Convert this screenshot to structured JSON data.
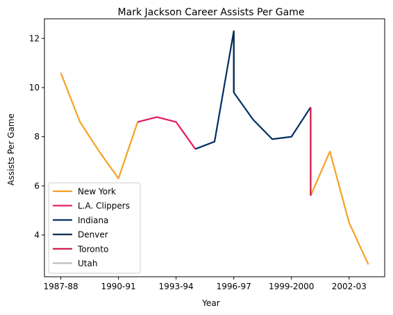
{
  "chart_data": {
    "type": "line",
    "title": "Mark Jackson  Career Assists Per Game",
    "xlabel": "Year",
    "ylabel": "Assists Per Game",
    "xticks": [
      "1987-88",
      "1990-91",
      "1993-94",
      "1996-97",
      "1999-2000",
      "2002-03"
    ],
    "yticks": [
      4,
      6,
      8,
      10,
      12
    ],
    "xlim": [
      -0.85,
      16.85
    ],
    "ylim": [
      2.3,
      12.8
    ],
    "grid": false,
    "legend_position": "lower-left",
    "series": [
      {
        "name": "New York",
        "color": "#f5a122",
        "segments": [
          {
            "x": [
              0,
              1,
              2,
              3,
              4
            ],
            "y": [
              10.6,
              8.6,
              7.4,
              6.3,
              8.6
            ]
          },
          {
            "x": [
              13,
              14,
              15,
              16
            ],
            "y": [
              5.6,
              7.4,
              4.5,
              2.8
            ]
          }
        ]
      },
      {
        "name": "L.A. Clippers",
        "color": "#e8175d",
        "segments": [
          {
            "x": [
              4,
              5,
              6,
              7
            ],
            "y": [
              8.6,
              8.8,
              8.6,
              7.5
            ]
          }
        ]
      },
      {
        "name": "Indiana",
        "color": "#002d62",
        "segments": [
          {
            "x": [
              7,
              8,
              9,
              9
            ],
            "y": [
              7.5,
              7.8,
              12.3,
              9.8
            ]
          },
          {
            "x": [
              9,
              10,
              11,
              12,
              13
            ],
            "y": [
              9.8,
              8.7,
              7.9,
              8.0,
              9.2
            ]
          }
        ]
      },
      {
        "name": "Denver",
        "color": "#0d2b4e",
        "segments": [
          {
            "x": [
              9,
              9
            ],
            "y": [
              12.3,
              9.8
            ]
          }
        ]
      },
      {
        "name": "Toronto",
        "color": "#ce1141",
        "segments": [
          {
            "x": [
              13,
              13
            ],
            "y": [
              9.2,
              5.6
            ]
          }
        ]
      },
      {
        "name": "Utah",
        "color": "#bebebe",
        "segments": []
      }
    ]
  }
}
